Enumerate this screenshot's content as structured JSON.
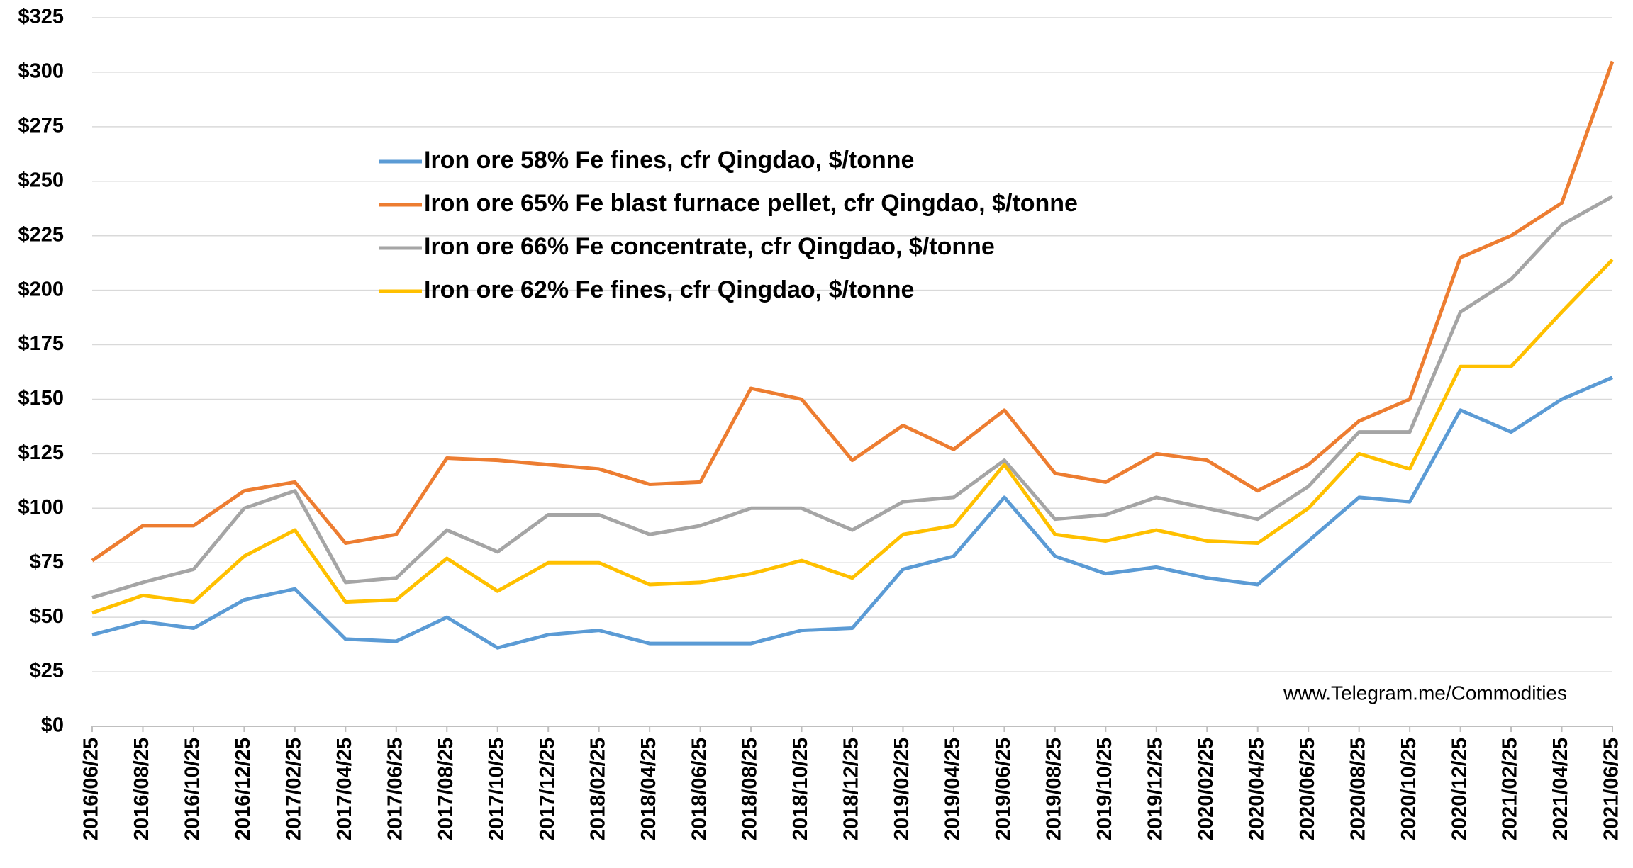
{
  "chart_data": {
    "type": "line",
    "x": [
      "2016/06/25",
      "2016/08/25",
      "2016/10/25",
      "2016/12/25",
      "2017/02/25",
      "2017/04/25",
      "2017/06/25",
      "2017/08/25",
      "2017/10/25",
      "2017/12/25",
      "2018/02/25",
      "2018/04/25",
      "2018/06/25",
      "2018/08/25",
      "2018/10/25",
      "2018/12/25",
      "2019/02/25",
      "2019/04/25",
      "2019/06/25",
      "2019/08/25",
      "2019/10/25",
      "2019/12/25",
      "2020/02/25",
      "2020/04/25",
      "2020/06/25",
      "2020/08/25",
      "2020/10/25",
      "2020/12/25",
      "2021/02/25",
      "2021/04/25",
      "2021/06/25"
    ],
    "series": [
      {
        "name": "Iron ore 58% Fe fines, cfr Qingdao, $/tonne",
        "color": "#5b9bd5",
        "values": [
          42,
          48,
          45,
          58,
          63,
          40,
          39,
          50,
          36,
          42,
          44,
          38,
          38,
          38,
          44,
          45,
          72,
          78,
          105,
          78,
          70,
          73,
          68,
          65,
          85,
          105,
          103,
          145,
          135,
          150,
          160
        ]
      },
      {
        "name": "Iron ore 65% Fe blast furnace pellet, cfr Qingdao, $/tonne",
        "color": "#ed7d31",
        "values": [
          76,
          92,
          92,
          108,
          112,
          84,
          88,
          123,
          122,
          120,
          118,
          111,
          112,
          155,
          150,
          122,
          138,
          127,
          145,
          116,
          112,
          125,
          122,
          108,
          120,
          140,
          150,
          215,
          225,
          240,
          305
        ]
      },
      {
        "name": "Iron ore 66% Fe concentrate, cfr Qingdao, $/tonne",
        "color": "#a5a5a5",
        "values": [
          59,
          66,
          72,
          100,
          108,
          66,
          68,
          90,
          80,
          97,
          97,
          88,
          92,
          100,
          100,
          90,
          103,
          105,
          122,
          95,
          97,
          105,
          100,
          95,
          110,
          135,
          135,
          190,
          205,
          230,
          243
        ]
      },
      {
        "name": "Iron ore 62% Fe fines, cfr Qingdao, $/tonne",
        "color": "#ffc000",
        "values": [
          52,
          60,
          57,
          78,
          90,
          57,
          58,
          77,
          62,
          75,
          75,
          65,
          66,
          70,
          76,
          68,
          88,
          92,
          120,
          88,
          85,
          90,
          85,
          84,
          100,
          125,
          118,
          165,
          165,
          190,
          214
        ]
      }
    ],
    "ylim": [
      0,
      325
    ],
    "yticks": [
      {
        "value": 0,
        "label": "$0"
      },
      {
        "value": 25,
        "label": "$25"
      },
      {
        "value": 50,
        "label": "$50"
      },
      {
        "value": 75,
        "label": "$75"
      },
      {
        "value": 100,
        "label": "$100"
      },
      {
        "value": 125,
        "label": "$125"
      },
      {
        "value": 150,
        "label": "$150"
      },
      {
        "value": 175,
        "label": "$175"
      },
      {
        "value": 200,
        "label": "$200"
      },
      {
        "value": 225,
        "label": "$225"
      },
      {
        "value": 250,
        "label": "$250"
      },
      {
        "value": 275,
        "label": "$275"
      },
      {
        "value": 300,
        "label": "$300"
      },
      {
        "value": 325,
        "label": "$325"
      }
    ],
    "grid": true,
    "annotation": "www.Telegram.me/Commodities"
  }
}
